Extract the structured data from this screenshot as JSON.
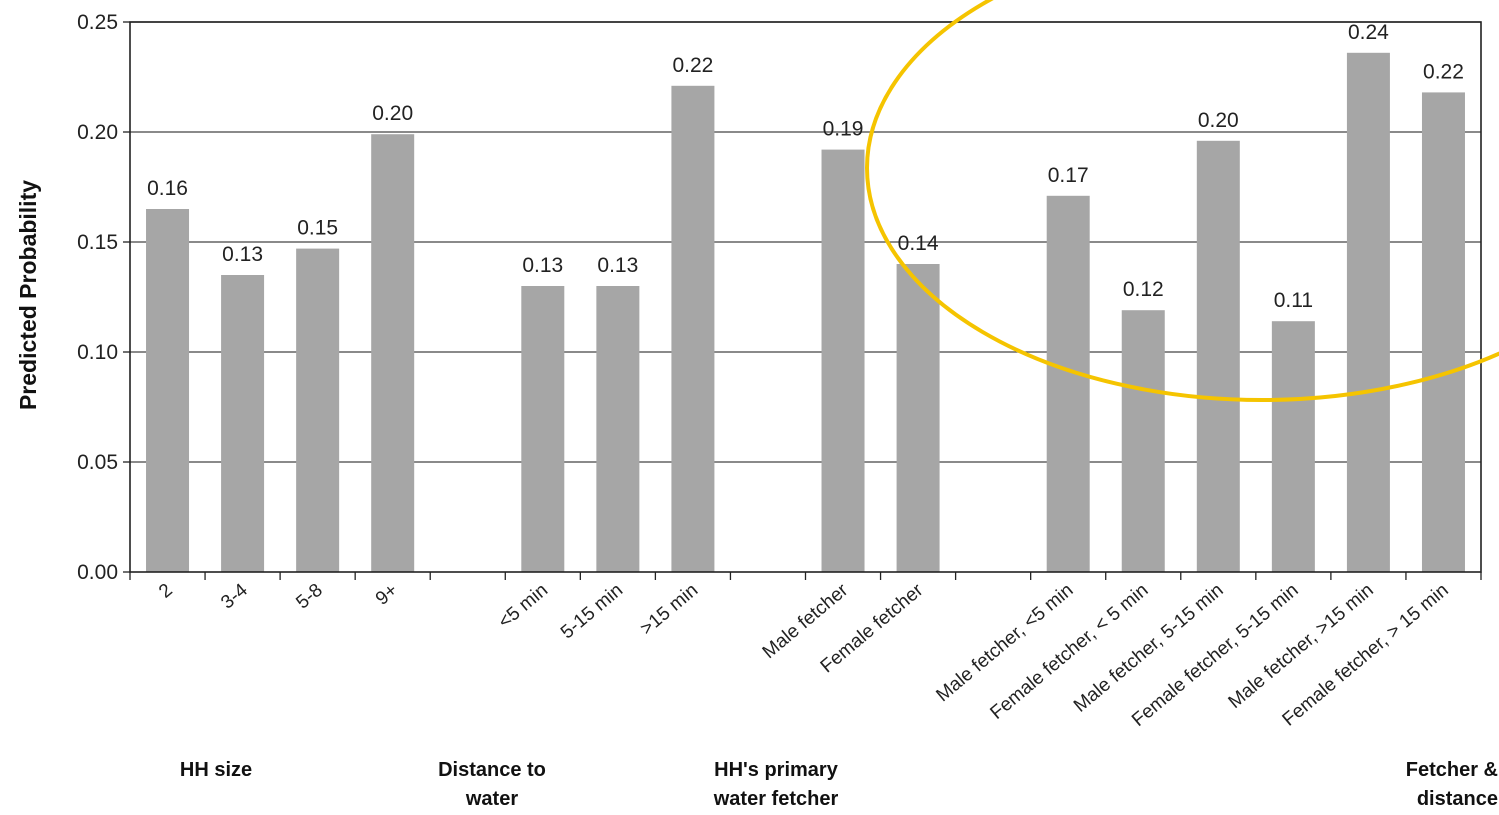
{
  "chart_data": {
    "type": "bar",
    "ylabel": "Predicted Probability",
    "xlabel": "",
    "ylim": [
      0,
      0.25
    ],
    "yticks": [
      "0.00",
      "0.05",
      "0.10",
      "0.15",
      "0.20",
      "0.25"
    ],
    "grid": true,
    "categories": [
      "2",
      "3-4",
      "5-8",
      "9+",
      "",
      "<5 min",
      "5-15 min",
      ">15 min",
      "",
      "Male fetcher",
      "Female fetcher",
      "",
      "Male fetcher, <5 min",
      "Female fetcher, < 5 min",
      "Male fetcher, 5-15 min",
      "Female fetcher, 5-15 min",
      "Male fetcher, >15 min",
      "Female fetcher, > 15 min"
    ],
    "values": [
      0.165,
      0.135,
      0.147,
      0.199,
      null,
      0.13,
      0.13,
      0.221,
      null,
      0.192,
      0.14,
      null,
      0.171,
      0.119,
      0.196,
      0.114,
      0.236,
      0.218
    ],
    "value_labels": [
      "0.16",
      "0.13",
      "0.15",
      "0.20",
      "",
      "0.13",
      "0.13",
      "0.22",
      "",
      "0.19",
      "0.14",
      "",
      "0.17",
      "0.12",
      "0.20",
      "0.11",
      "0.24",
      "0.22"
    ],
    "groups": [
      {
        "label": "HH size"
      },
      {
        "label": "Distance to\nwater"
      },
      {
        "label": "HH's primary\nwater fetcher"
      },
      {
        "label": "Fetcher &\ndistance"
      }
    ],
    "colors": {
      "bar": "#a6a6a6",
      "highlight": "#f5c400",
      "axis": "#222222"
    },
    "annotation": "yellow ellipse highlighting the fetcher interaction bars"
  }
}
